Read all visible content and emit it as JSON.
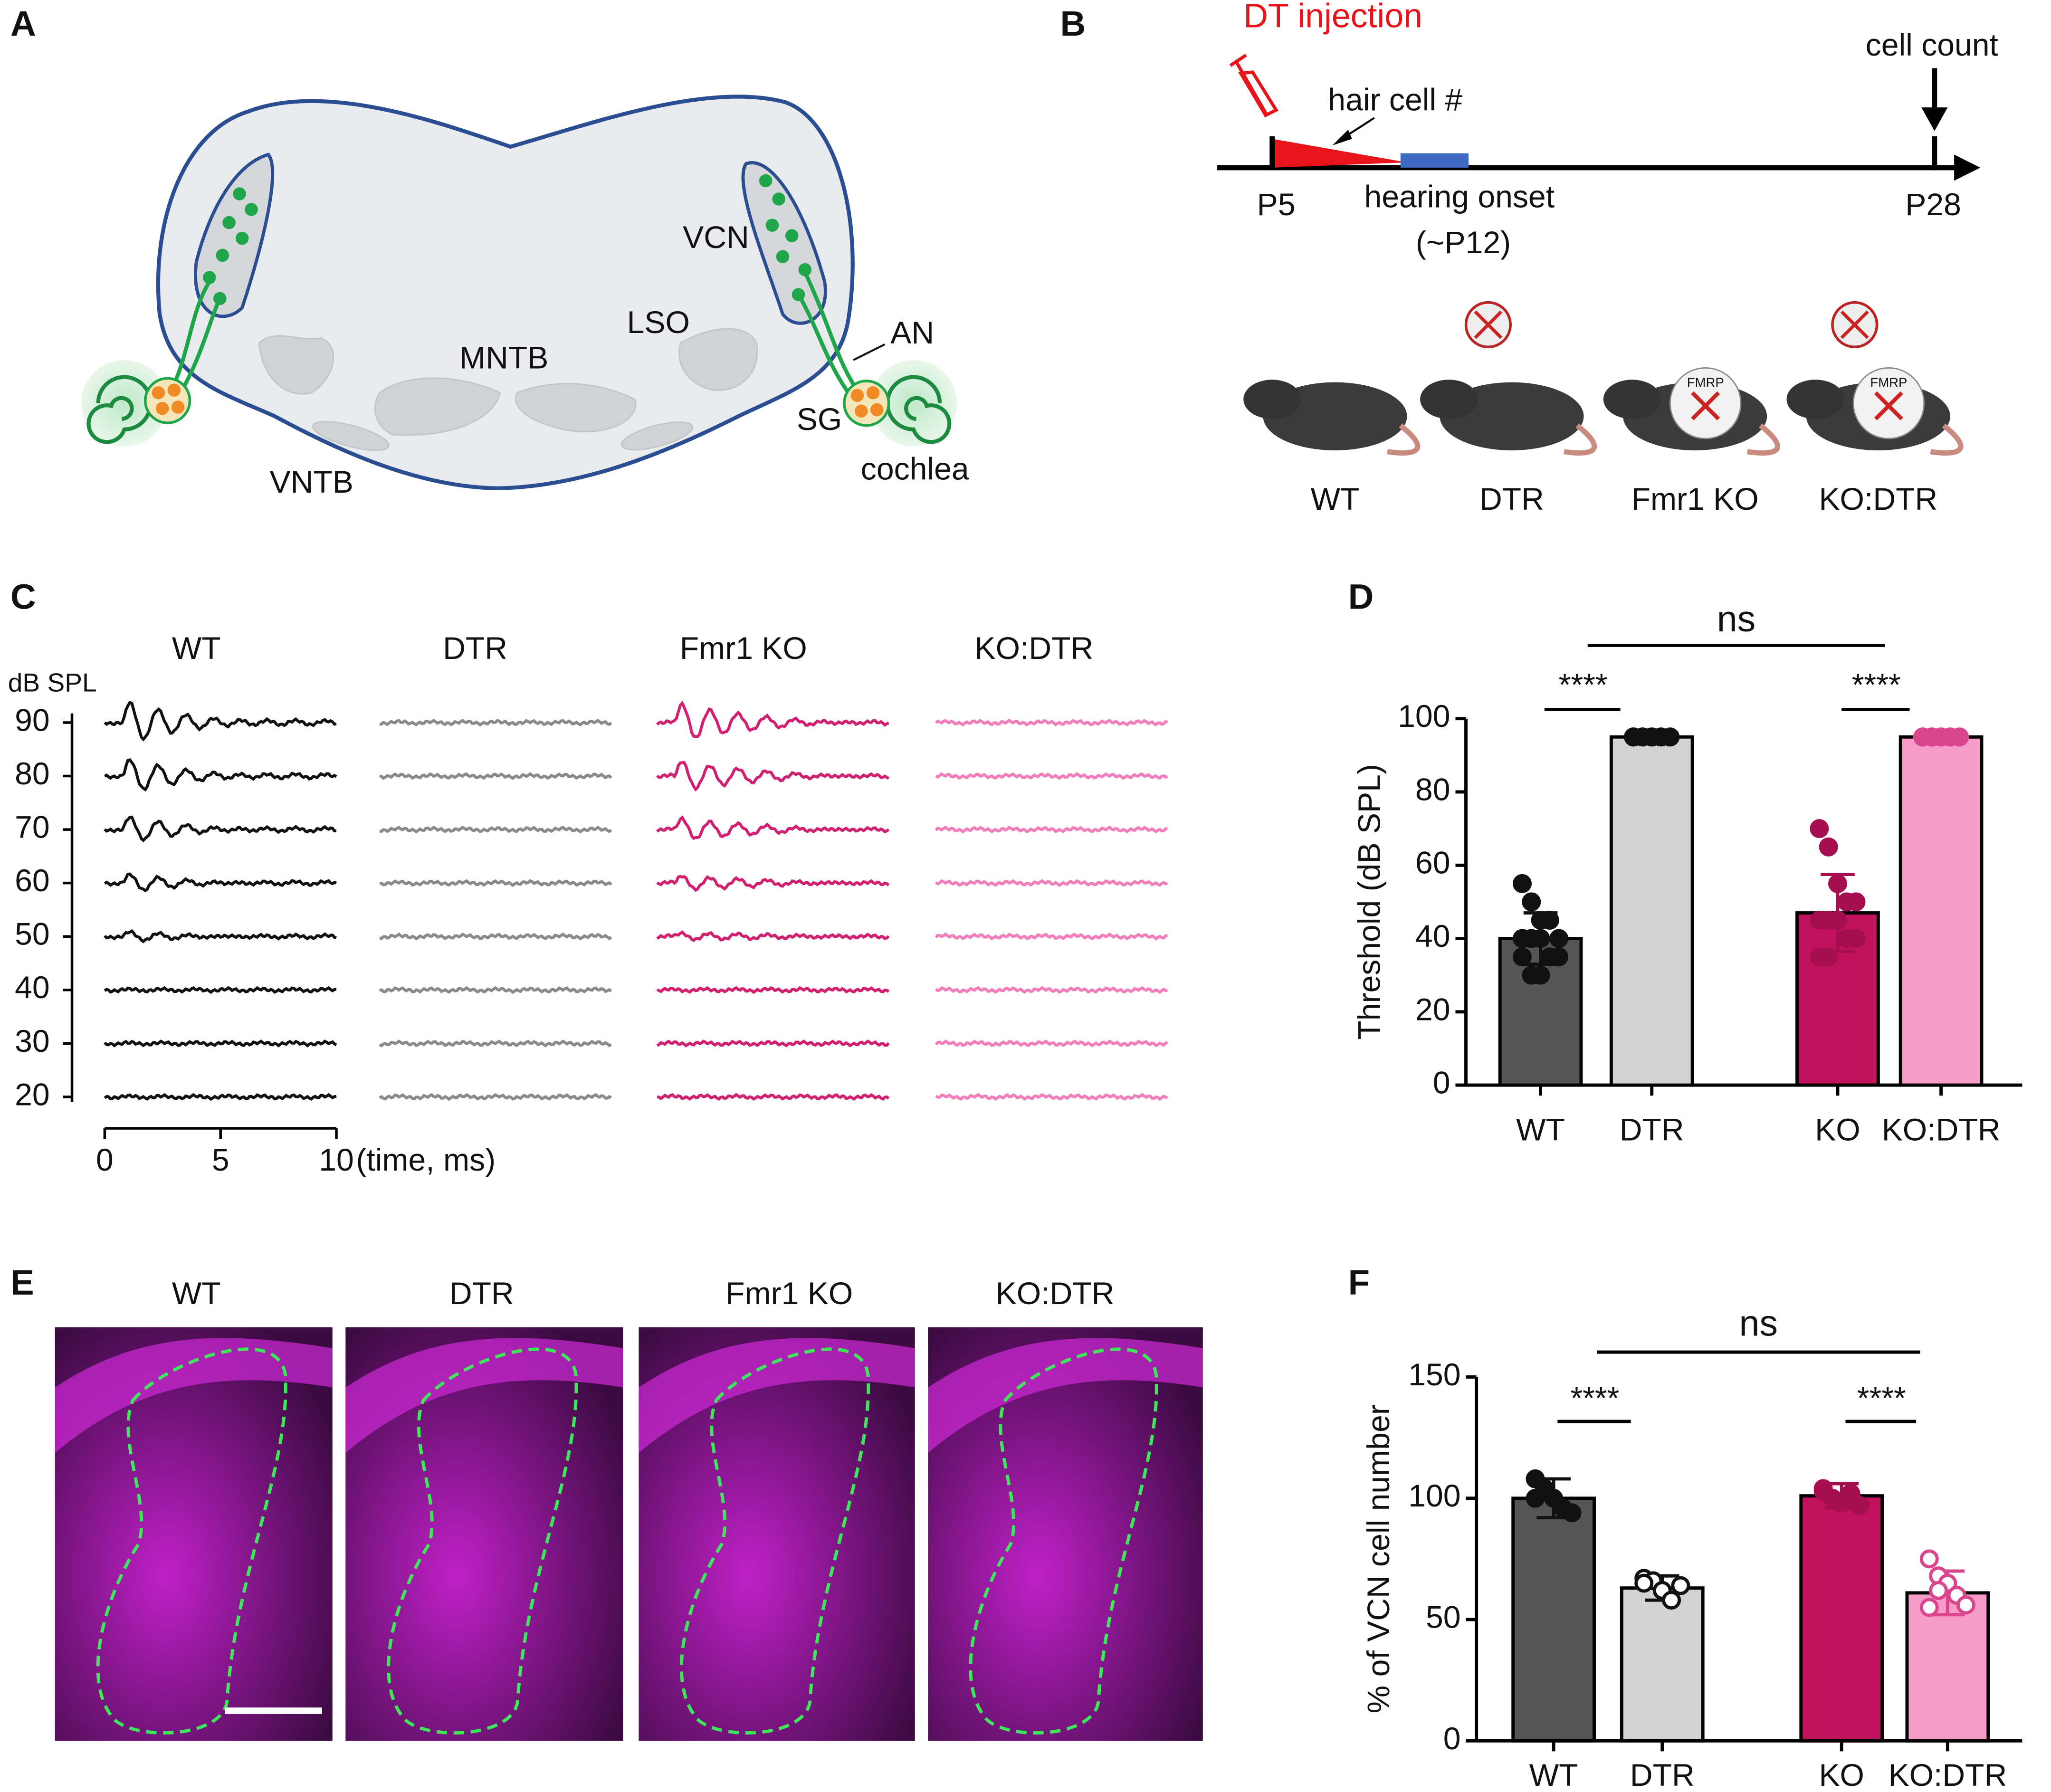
{
  "panel_labels": [
    "A",
    "B",
    "C",
    "D",
    "E",
    "F"
  ],
  "panel_a": {
    "labels": [
      "VCN",
      "LSO",
      "MNTB",
      "AN",
      "SG",
      "VNTB",
      "cochlea"
    ]
  },
  "panel_b": {
    "injection": "DT injection",
    "hair_cell": "hair cell #",
    "onset": "hearing onset",
    "onset_age": "(~P12)",
    "count": "cell count",
    "start": "P5",
    "end": "P28",
    "groups": [
      "WT",
      "DTR",
      "Fmr1 KO",
      "KO:DTR"
    ],
    "fmrp": "FMRP"
  },
  "panel_c": {
    "groups": [
      "WT",
      "DTR",
      "Fmr1 KO",
      "KO:DTR"
    ],
    "y_unit": "dB SPL",
    "levels": [
      90,
      80,
      70,
      60,
      50,
      40,
      30,
      20
    ],
    "xticks": [
      0,
      5,
      10
    ],
    "x_unit": "(time, ms)",
    "colors": [
      "#111111",
      "#8a8a8a",
      "#d1206f",
      "#f27dbb"
    ]
  },
  "panel_e": {
    "groups": [
      "WT",
      "DTR",
      "Fmr1 KO",
      "KO:DTR"
    ]
  },
  "chart_data": [
    {
      "type": "bar",
      "ylabel": "Threshold (dB SPL)",
      "categories": [
        "WT",
        "DTR",
        "KO",
        "KO:DTR"
      ],
      "values": [
        40,
        95,
        47,
        95
      ],
      "errors": [
        7,
        0,
        10.5,
        0
      ],
      "points": [
        [
          55,
          50,
          45,
          45,
          40,
          40,
          40,
          40,
          35,
          35,
          35,
          30,
          30
        ],
        [
          95,
          95,
          95,
          95,
          95,
          95,
          95,
          95,
          95,
          95,
          95,
          95
        ],
        [
          70,
          65,
          55,
          50,
          50,
          45,
          45,
          45,
          40,
          40,
          35,
          35
        ],
        [
          95,
          95,
          95,
          95,
          95,
          95,
          95,
          95,
          95,
          95,
          95,
          95
        ]
      ],
      "colors": [
        "#555555",
        "#d3d3d3",
        "#c2125d",
        "#f59cc8"
      ],
      "point_colors": [
        "#111111",
        "#111111",
        "#a50f50",
        "#d9468e"
      ],
      "markers": [
        "filled",
        "filled",
        "filled",
        "filled"
      ],
      "ylim": [
        0,
        100
      ],
      "yticks": [
        0,
        20,
        40,
        60,
        80,
        100
      ],
      "significance": [
        "****",
        "****",
        "ns"
      ]
    },
    {
      "type": "bar",
      "ylabel": "% of VCN cell number",
      "categories": [
        "WT",
        "DTR",
        "KO",
        "KO:DTR"
      ],
      "values": [
        100,
        63,
        101,
        61
      ],
      "errors": [
        8,
        5,
        5,
        9
      ],
      "points": [
        [
          108,
          104,
          100,
          96,
          94,
          100
        ],
        [
          67,
          66,
          62,
          58,
          64,
          65
        ],
        [
          104,
          100,
          98,
          102,
          97,
          103
        ],
        [
          75,
          68,
          65,
          60,
          56,
          55,
          62
        ]
      ],
      "colors": [
        "#555555",
        "#d3d3d3",
        "#c2125d",
        "#f59cc8"
      ],
      "point_colors": [
        "#111111",
        "#111111",
        "#a50f50",
        "#d9468e"
      ],
      "markers": [
        "filled",
        "hollow",
        "filled",
        "hollow"
      ],
      "ylim": [
        0,
        150
      ],
      "yticks": [
        0,
        50,
        100,
        150
      ],
      "significance": [
        "****",
        "****",
        "ns"
      ]
    }
  ]
}
